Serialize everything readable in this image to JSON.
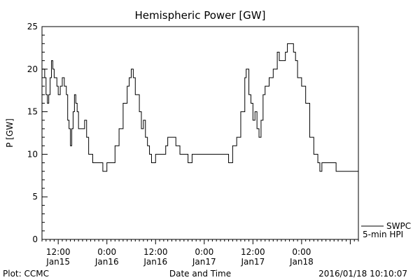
{
  "chart_data": {
    "type": "line",
    "title": "Hemispheric Power [GW]",
    "xlabel": "Date and Time",
    "ylabel": "P [GW]",
    "ylim": [
      0,
      25
    ],
    "yticks": [
      0,
      5,
      10,
      15,
      20,
      25
    ],
    "xlim": [
      "2016-01-15T08:00",
      "2016-01-18T14:00"
    ],
    "xticks": [
      {
        "t": "2016-01-15T12:00",
        "line1": "12:00",
        "line2": "Jan15"
      },
      {
        "t": "2016-01-16T00:00",
        "line1": "0:00",
        "line2": "Jan16"
      },
      {
        "t": "2016-01-16T12:00",
        "line1": "12:00",
        "line2": "Jan16"
      },
      {
        "t": "2016-01-17T00:00",
        "line1": "0:00",
        "line2": "Jan17"
      },
      {
        "t": "2016-01-17T12:00",
        "line1": "12:00",
        "line2": "Jan17"
      },
      {
        "t": "2016-01-18T00:00",
        "line1": "0:00",
        "line2": "Jan18"
      }
    ],
    "legend": {
      "placement": "bottom-right",
      "line1": "SWPC",
      "line2": "5-min HPI"
    },
    "series": [
      {
        "name": "SWPC 5-min HPI",
        "color": "#000000",
        "points": [
          [
            "2016-01-15T08:00",
            20
          ],
          [
            "2016-01-15T08:20",
            20
          ],
          [
            "2016-01-15T08:40",
            19
          ],
          [
            "2016-01-15T09:00",
            17
          ],
          [
            "2016-01-15T09:20",
            16
          ],
          [
            "2016-01-15T09:40",
            17
          ],
          [
            "2016-01-15T10:00",
            19
          ],
          [
            "2016-01-15T10:20",
            21
          ],
          [
            "2016-01-15T10:40",
            20
          ],
          [
            "2016-01-15T11:00",
            19
          ],
          [
            "2016-01-15T11:20",
            19
          ],
          [
            "2016-01-15T11:40",
            18
          ],
          [
            "2016-01-15T12:00",
            17
          ],
          [
            "2016-01-15T12:30",
            18
          ],
          [
            "2016-01-15T13:00",
            19
          ],
          [
            "2016-01-15T13:30",
            18
          ],
          [
            "2016-01-15T14:00",
            17
          ],
          [
            "2016-01-15T14:20",
            14
          ],
          [
            "2016-01-15T14:40",
            13
          ],
          [
            "2016-01-15T15:00",
            11
          ],
          [
            "2016-01-15T15:20",
            13
          ],
          [
            "2016-01-15T15:40",
            15
          ],
          [
            "2016-01-15T16:00",
            17
          ],
          [
            "2016-01-15T16:20",
            16
          ],
          [
            "2016-01-15T16:40",
            15
          ],
          [
            "2016-01-15T17:00",
            13
          ],
          [
            "2016-01-15T18:00",
            13
          ],
          [
            "2016-01-15T18:30",
            14
          ],
          [
            "2016-01-15T19:00",
            12
          ],
          [
            "2016-01-15T19:30",
            10
          ],
          [
            "2016-01-15T20:30",
            9
          ],
          [
            "2016-01-15T22:30",
            9
          ],
          [
            "2016-01-15T23:00",
            8
          ],
          [
            "2016-01-15T23:30",
            8
          ],
          [
            "2016-01-16T00:00",
            9
          ],
          [
            "2016-01-16T01:00",
            9
          ],
          [
            "2016-01-16T02:00",
            11
          ],
          [
            "2016-01-16T03:00",
            13
          ],
          [
            "2016-01-16T04:00",
            16
          ],
          [
            "2016-01-16T05:00",
            18
          ],
          [
            "2016-01-16T05:30",
            19
          ],
          [
            "2016-01-16T06:00",
            20
          ],
          [
            "2016-01-16T06:30",
            19
          ],
          [
            "2016-01-16T07:00",
            17
          ],
          [
            "2016-01-16T08:00",
            15
          ],
          [
            "2016-01-16T08:30",
            13
          ],
          [
            "2016-01-16T09:00",
            14
          ],
          [
            "2016-01-16T09:30",
            12
          ],
          [
            "2016-01-16T10:00",
            11
          ],
          [
            "2016-01-16T10:30",
            10
          ],
          [
            "2016-01-16T11:00",
            9
          ],
          [
            "2016-01-16T12:00",
            10
          ],
          [
            "2016-01-16T14:00",
            10
          ],
          [
            "2016-01-16T14:30",
            11
          ],
          [
            "2016-01-16T15:00",
            12
          ],
          [
            "2016-01-16T17:00",
            11
          ],
          [
            "2016-01-16T18:00",
            10
          ],
          [
            "2016-01-16T19:00",
            10
          ],
          [
            "2016-01-16T20:00",
            9
          ],
          [
            "2016-01-16T21:00",
            10
          ],
          [
            "2016-01-17T03:00",
            10
          ],
          [
            "2016-01-17T05:30",
            10
          ],
          [
            "2016-01-17T06:00",
            9
          ],
          [
            "2016-01-17T07:00",
            11
          ],
          [
            "2016-01-17T08:00",
            12
          ],
          [
            "2016-01-17T09:00",
            15
          ],
          [
            "2016-01-17T10:00",
            19
          ],
          [
            "2016-01-17T10:20",
            20
          ],
          [
            "2016-01-17T11:00",
            17
          ],
          [
            "2016-01-17T11:30",
            16
          ],
          [
            "2016-01-17T12:00",
            14
          ],
          [
            "2016-01-17T12:30",
            15
          ],
          [
            "2016-01-17T13:00",
            13
          ],
          [
            "2016-01-17T13:30",
            12
          ],
          [
            "2016-01-17T14:00",
            14
          ],
          [
            "2016-01-17T14:30",
            17
          ],
          [
            "2016-01-17T15:00",
            18
          ],
          [
            "2016-01-17T16:00",
            19
          ],
          [
            "2016-01-17T17:00",
            20
          ],
          [
            "2016-01-17T18:00",
            22
          ],
          [
            "2016-01-17T18:30",
            21
          ],
          [
            "2016-01-17T19:30",
            21
          ],
          [
            "2016-01-17T20:00",
            22
          ],
          [
            "2016-01-17T20:30",
            23
          ],
          [
            "2016-01-17T21:30",
            23
          ],
          [
            "2016-01-17T22:00",
            22
          ],
          [
            "2016-01-17T22:30",
            21
          ],
          [
            "2016-01-17T23:00",
            19
          ],
          [
            "2016-01-17T23:30",
            19
          ],
          [
            "2016-01-18T00:00",
            18
          ],
          [
            "2016-01-18T01:00",
            16
          ],
          [
            "2016-01-18T02:00",
            12
          ],
          [
            "2016-01-18T03:00",
            10
          ],
          [
            "2016-01-18T04:00",
            9
          ],
          [
            "2016-01-18T04:30",
            8
          ],
          [
            "2016-01-18T05:00",
            9
          ],
          [
            "2016-01-18T06:00",
            9
          ],
          [
            "2016-01-18T07:00",
            9
          ],
          [
            "2016-01-18T08:00",
            9
          ],
          [
            "2016-01-18T08:30",
            8
          ],
          [
            "2016-01-18T14:00",
            8
          ]
        ]
      }
    ]
  },
  "footer": {
    "plot_credit": "Plot: CCMC",
    "timestamp": "2016/01/18 10:10:07"
  }
}
